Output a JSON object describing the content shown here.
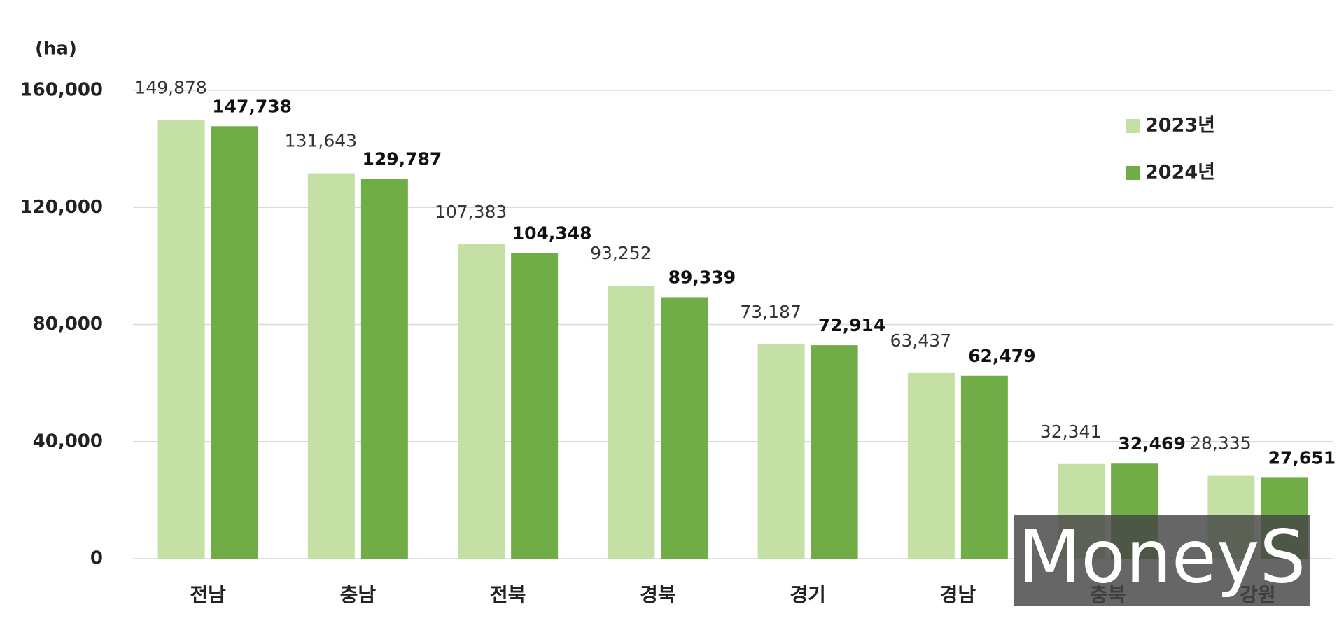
{
  "chart_data": {
    "type": "bar",
    "y_label": "(ha)",
    "categories": [
      "전남",
      "충남",
      "전북",
      "경북",
      "경기",
      "경남",
      "충북",
      "강원"
    ],
    "series": [
      {
        "name": "2023년",
        "color": "#c5e0a5",
        "values": [
          149878,
          131643,
          107383,
          93252,
          73187,
          63437,
          32341,
          28335
        ],
        "value_labels": [
          "149,878",
          "131,643",
          "107,383",
          "93,252",
          "73,187",
          "63,437",
          "32,341",
          "28,335"
        ]
      },
      {
        "name": "2024년",
        "color": "#70ad47",
        "values": [
          147738,
          129787,
          104348,
          89339,
          72914,
          62479,
          32469,
          27651
        ],
        "value_labels": [
          "147,738",
          "129,787",
          "104,348",
          "89,339",
          "72,914",
          "62,479",
          "32,469",
          "27,651"
        ]
      }
    ],
    "ylim": [
      0,
      160000
    ],
    "yticks": [
      {
        "value": 0,
        "label": "0"
      },
      {
        "value": 40000,
        "label": "40,000"
      },
      {
        "value": 80000,
        "label": "80,000"
      },
      {
        "value": 120000,
        "label": "120,000"
      },
      {
        "value": 160000,
        "label": "160,000"
      }
    ],
    "grid": true,
    "legend": "upper right",
    "watermark": "MoneyS"
  }
}
